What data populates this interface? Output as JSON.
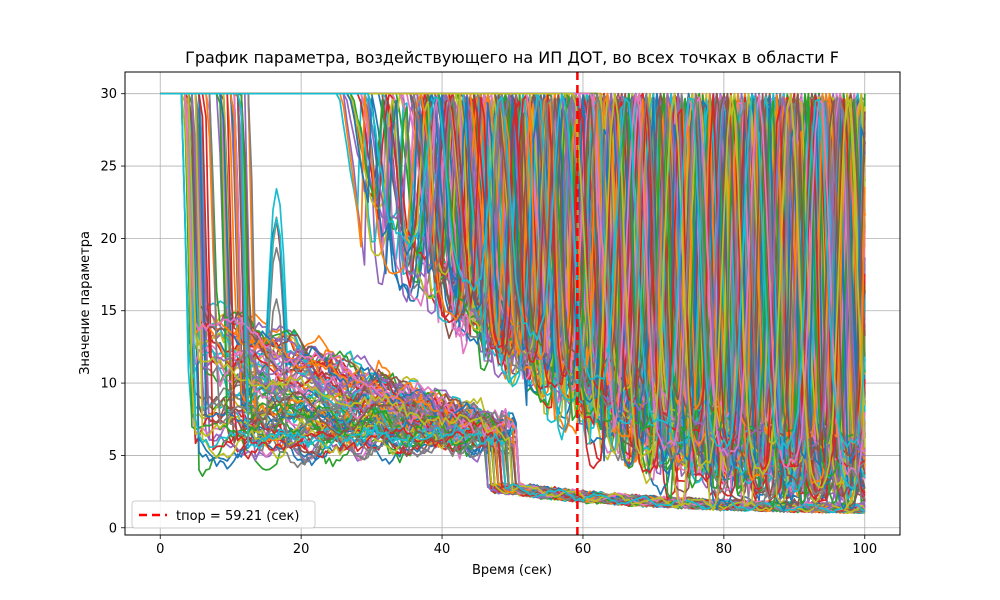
{
  "chart_data": {
    "type": "line",
    "title": "График параметра, воздействующего на ИП ДОТ, во всех точках в области F",
    "xlabel": "Время (сек)",
    "ylabel": "Значение параметра",
    "xlim": [
      -5,
      105
    ],
    "ylim": [
      -0.5,
      31.5
    ],
    "xticks": [
      0,
      20,
      40,
      60,
      80,
      100
    ],
    "yticks": [
      0,
      5,
      10,
      15,
      20,
      25,
      30
    ],
    "xtick_labels": [
      "0",
      "20",
      "40",
      "60",
      "80",
      "100"
    ],
    "ytick_labels": [
      "0",
      "5",
      "10",
      "15",
      "20",
      "25",
      "30"
    ],
    "grid": true,
    "legend_position": "lower-left",
    "threshold": {
      "x": 59.21,
      "label": "tпор = 59.21 (сек)",
      "color": "#ff0000",
      "style": "dashed"
    },
    "color_cycle": [
      "#1f77b4",
      "#ff7f0e",
      "#2ca02c",
      "#d62728",
      "#9467bd",
      "#8c564b",
      "#e377c2",
      "#7f7f7f",
      "#bcbd22",
      "#17becf"
    ],
    "series_groups": [
      {
        "description_points": "early group: 30 until drop at t≈3-13, settles 4-20, declines to ≈6 at t≈50, then drops to ≈2 and decays to ≈1 at t=100",
        "count": 90,
        "representative": {
          "x": [
            0,
            3,
            4,
            6,
            10,
            15,
            20,
            25,
            30,
            40,
            48,
            50,
            55,
            60,
            70,
            80,
            90,
            100
          ],
          "y": [
            30,
            30,
            8,
            12,
            13,
            14,
            12,
            10,
            9,
            7,
            6.5,
            2.5,
            2.5,
            2.2,
            1.8,
            1.5,
            1.3,
            1.1
          ]
        }
      },
      {
        "description_points": "late group: 30 until t≈25-60, dips to 5-20, oscillates between minimum and 30 until t=100",
        "count": 160,
        "representative": {
          "x": [
            0,
            27,
            35,
            45,
            50,
            55,
            59,
            65,
            70,
            80,
            90,
            100
          ],
          "y": [
            30,
            30,
            20,
            14,
            11,
            9,
            7,
            30,
            8,
            30,
            5,
            30
          ]
        }
      }
    ]
  }
}
